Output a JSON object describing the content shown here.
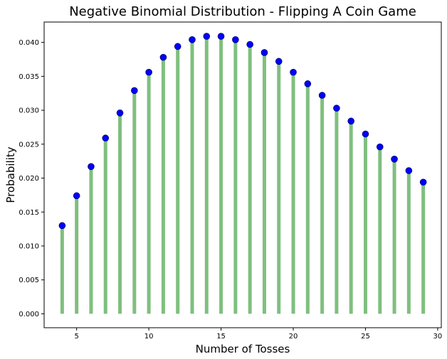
{
  "chart_data": {
    "type": "stem",
    "title": "Negative Binomial Distribution - Flipping A Coin Game",
    "xlabel": "Number of Tosses",
    "ylabel": "Probability",
    "x": [
      4,
      5,
      6,
      7,
      8,
      9,
      10,
      11,
      12,
      13,
      14,
      15,
      16,
      17,
      18,
      19,
      20,
      21,
      22,
      23,
      24,
      25,
      26,
      27,
      28,
      29
    ],
    "y": [
      0.013,
      0.0174,
      0.0217,
      0.0259,
      0.0296,
      0.0329,
      0.0356,
      0.0378,
      0.0394,
      0.0404,
      0.0409,
      0.0409,
      0.0404,
      0.0397,
      0.0385,
      0.0372,
      0.0356,
      0.0339,
      0.0322,
      0.0303,
      0.0284,
      0.0265,
      0.0246,
      0.0228,
      0.0211,
      0.0194
    ],
    "xlim": [
      2.75,
      30.25
    ],
    "ylim": [
      -0.00205,
      0.043
    ],
    "xticks": [
      5,
      10,
      15,
      20,
      25,
      30
    ],
    "xtick_labels": [
      "5",
      "10",
      "15",
      "20",
      "25",
      "30"
    ],
    "yticks": [
      0.0,
      0.005,
      0.01,
      0.015,
      0.02,
      0.025,
      0.03,
      0.035,
      0.04
    ],
    "ytick_labels": [
      "0.000",
      "0.005",
      "0.010",
      "0.015",
      "0.020",
      "0.025",
      "0.030",
      "0.035",
      "0.040"
    ],
    "grid": false,
    "colors": {
      "stem": "#7fbf7f",
      "marker": "#0000ff",
      "marker_edge": "#00008b"
    }
  }
}
